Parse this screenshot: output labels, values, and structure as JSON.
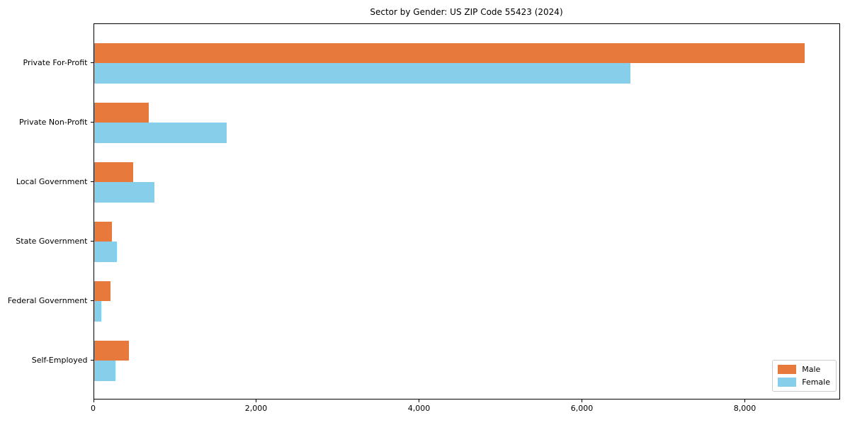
{
  "chart_data": {
    "type": "bar",
    "orientation": "horizontal",
    "title": "Sector by Gender: US ZIP Code 55423 (2024)",
    "categories": [
      "Private For-Profit",
      "Private Non-Profit",
      "Local Government",
      "State Government",
      "Federal Government",
      "Self-Employed"
    ],
    "series": [
      {
        "name": "Male",
        "color": "#E8793C",
        "values": [
          8730,
          672,
          483,
          223,
          205,
          434
        ]
      },
      {
        "name": "Female",
        "color": "#87CEEB",
        "values": [
          6585,
          1632,
          745,
          284,
          92,
          266
        ]
      }
    ],
    "xlabel": "",
    "ylabel": "",
    "xlim": [
      0,
      9170
    ],
    "xticks": [
      0,
      2000,
      4000,
      6000,
      8000
    ],
    "xtick_labels": [
      "0",
      "2,000",
      "4,000",
      "6,000",
      "8,000"
    ],
    "grid": false,
    "legend_position": "lower right"
  }
}
